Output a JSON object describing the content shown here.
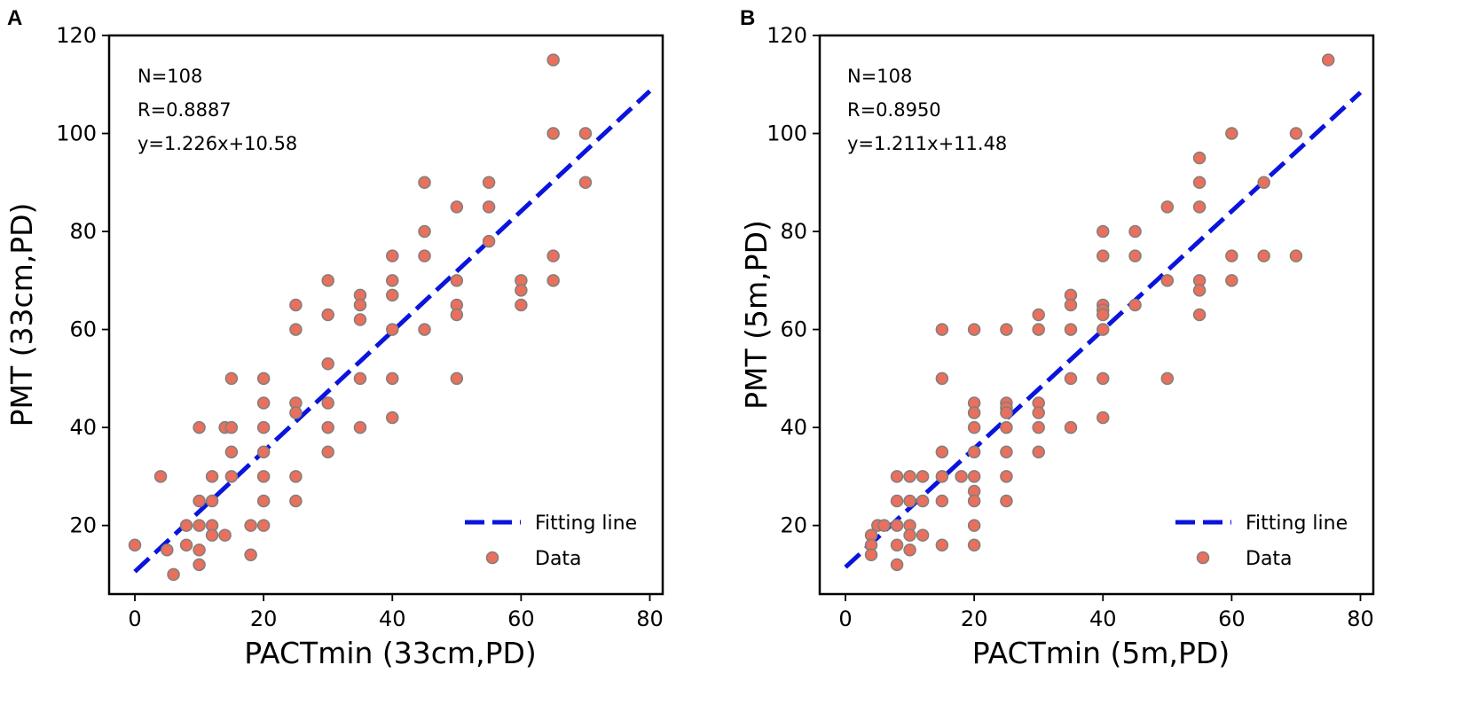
{
  "chart_data": [
    {
      "type": "scatter",
      "panel_label": "A",
      "xlabel": "PACTmin (33cm,PD)",
      "ylabel": "PMT (33cm,PD)",
      "xlim": [
        -4,
        82
      ],
      "ylim": [
        6,
        120
      ],
      "xticks": [
        0,
        20,
        40,
        60,
        80
      ],
      "yticks": [
        20,
        40,
        60,
        80,
        100,
        120
      ],
      "annotations": [
        "N=108",
        "R=0.8887",
        "y=1.226x+10.58"
      ],
      "fit": {
        "name": "Fitting line",
        "slope": 1.226,
        "intercept": 10.58,
        "x_range": [
          0,
          80
        ]
      },
      "series": [
        {
          "name": "Data",
          "points": [
            [
              0,
              16
            ],
            [
              4,
              30
            ],
            [
              5,
              15
            ],
            [
              6,
              10
            ],
            [
              8,
              16
            ],
            [
              8,
              20
            ],
            [
              10,
              40
            ],
            [
              10,
              25
            ],
            [
              10,
              20
            ],
            [
              10,
              15
            ],
            [
              10,
              12
            ],
            [
              12,
              30
            ],
            [
              12,
              25
            ],
            [
              12,
              20
            ],
            [
              12,
              18
            ],
            [
              14,
              40
            ],
            [
              14,
              18
            ],
            [
              15,
              50
            ],
            [
              15,
              40
            ],
            [
              15,
              35
            ],
            [
              15,
              30
            ],
            [
              18,
              20
            ],
            [
              18,
              14
            ],
            [
              20,
              50
            ],
            [
              20,
              45
            ],
            [
              20,
              40
            ],
            [
              20,
              35
            ],
            [
              20,
              30
            ],
            [
              20,
              25
            ],
            [
              20,
              20
            ],
            [
              25,
              65
            ],
            [
              25,
              60
            ],
            [
              25,
              45
            ],
            [
              25,
              43
            ],
            [
              25,
              30
            ],
            [
              25,
              25
            ],
            [
              30,
              70
            ],
            [
              30,
              63
            ],
            [
              30,
              53
            ],
            [
              30,
              45
            ],
            [
              30,
              40
            ],
            [
              30,
              35
            ],
            [
              35,
              67
            ],
            [
              35,
              65
            ],
            [
              35,
              62
            ],
            [
              35,
              50
            ],
            [
              35,
              40
            ],
            [
              40,
              75
            ],
            [
              40,
              70
            ],
            [
              40,
              67
            ],
            [
              40,
              60
            ],
            [
              40,
              50
            ],
            [
              40,
              42
            ],
            [
              45,
              90
            ],
            [
              45,
              80
            ],
            [
              45,
              75
            ],
            [
              45,
              60
            ],
            [
              50,
              85
            ],
            [
              50,
              70
            ],
            [
              50,
              65
            ],
            [
              50,
              63
            ],
            [
              50,
              50
            ],
            [
              55,
              90
            ],
            [
              55,
              85
            ],
            [
              55,
              78
            ],
            [
              60,
              70
            ],
            [
              60,
              68
            ],
            [
              60,
              65
            ],
            [
              65,
              115
            ],
            [
              65,
              100
            ],
            [
              65,
              75
            ],
            [
              65,
              70
            ],
            [
              70,
              100
            ],
            [
              70,
              90
            ]
          ]
        }
      ],
      "legend": [
        "Fitting line",
        "Data"
      ]
    },
    {
      "type": "scatter",
      "panel_label": "B",
      "xlabel": "PACTmin (5m,PD)",
      "ylabel": "PMT (5m,PD)",
      "xlim": [
        -4,
        82
      ],
      "ylim": [
        6,
        120
      ],
      "xticks": [
        0,
        20,
        40,
        60,
        80
      ],
      "yticks": [
        20,
        40,
        60,
        80,
        100,
        120
      ],
      "annotations": [
        "N=108",
        "R=0.8950",
        "y=1.211x+11.48"
      ],
      "fit": {
        "name": "Fitting line",
        "slope": 1.211,
        "intercept": 11.48,
        "x_range": [
          0,
          80
        ]
      },
      "series": [
        {
          "name": "Data",
          "points": [
            [
              4,
              18
            ],
            [
              4,
              16
            ],
            [
              4,
              14
            ],
            [
              5,
              20
            ],
            [
              6,
              20
            ],
            [
              8,
              30
            ],
            [
              8,
              25
            ],
            [
              8,
              20
            ],
            [
              8,
              16
            ],
            [
              8,
              12
            ],
            [
              10,
              30
            ],
            [
              10,
              25
            ],
            [
              10,
              20
            ],
            [
              10,
              18
            ],
            [
              10,
              15
            ],
            [
              12,
              30
            ],
            [
              12,
              25
            ],
            [
              12,
              18
            ],
            [
              15,
              60
            ],
            [
              15,
              50
            ],
            [
              15,
              35
            ],
            [
              15,
              30
            ],
            [
              15,
              25
            ],
            [
              15,
              16
            ],
            [
              18,
              30
            ],
            [
              20,
              60
            ],
            [
              20,
              45
            ],
            [
              20,
              43
            ],
            [
              20,
              40
            ],
            [
              20,
              35
            ],
            [
              20,
              30
            ],
            [
              20,
              27
            ],
            [
              20,
              25
            ],
            [
              20,
              20
            ],
            [
              20,
              16
            ],
            [
              25,
              60
            ],
            [
              25,
              45
            ],
            [
              25,
              44
            ],
            [
              25,
              43
            ],
            [
              25,
              40
            ],
            [
              25,
              35
            ],
            [
              25,
              30
            ],
            [
              25,
              25
            ],
            [
              30,
              63
            ],
            [
              30,
              60
            ],
            [
              30,
              45
            ],
            [
              30,
              43
            ],
            [
              30,
              40
            ],
            [
              30,
              35
            ],
            [
              35,
              67
            ],
            [
              35,
              65
            ],
            [
              35,
              60
            ],
            [
              35,
              50
            ],
            [
              35,
              40
            ],
            [
              40,
              80
            ],
            [
              40,
              75
            ],
            [
              40,
              65
            ],
            [
              40,
              64
            ],
            [
              40,
              63
            ],
            [
              40,
              60
            ],
            [
              40,
              50
            ],
            [
              40,
              42
            ],
            [
              45,
              80
            ],
            [
              45,
              75
            ],
            [
              45,
              65
            ],
            [
              50,
              85
            ],
            [
              50,
              70
            ],
            [
              50,
              50
            ],
            [
              55,
              95
            ],
            [
              55,
              90
            ],
            [
              55,
              85
            ],
            [
              55,
              70
            ],
            [
              55,
              68
            ],
            [
              55,
              63
            ],
            [
              60,
              100
            ],
            [
              60,
              75
            ],
            [
              60,
              70
            ],
            [
              65,
              90
            ],
            [
              65,
              75
            ],
            [
              70,
              100
            ],
            [
              70,
              75
            ],
            [
              75,
              115
            ]
          ]
        }
      ],
      "legend": [
        "Fitting line",
        "Data"
      ]
    }
  ]
}
